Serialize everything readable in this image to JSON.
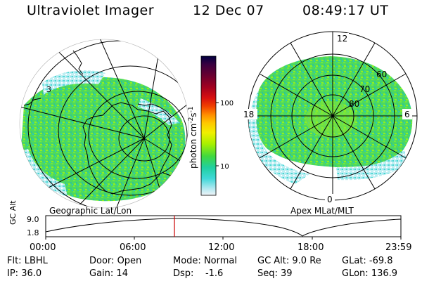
{
  "header": {
    "title": "Ultraviolet Imager",
    "date": "12 Dec 07",
    "time": "08:49:17 UT"
  },
  "geo_map": {
    "label": "Geographic Lat/Lon",
    "overlay_number": "3"
  },
  "apex_map": {
    "label": "Apex MLat/MLT",
    "mlt_labels": {
      "top": "12",
      "left": "18",
      "right": "6",
      "bottom": "0"
    },
    "mlat_labels": [
      "60",
      "70",
      "80"
    ]
  },
  "colorbar": {
    "unit_label": "photon cm",
    "unit_sup1": "-2",
    "unit_mid": "s",
    "unit_sup2": "-1",
    "ticks": [
      "100",
      "10"
    ],
    "colors": [
      "#000040",
      "#3a0040",
      "#6a0030",
      "#a00020",
      "#d00010",
      "#f04000",
      "#ff8000",
      "#ffc000",
      "#f0f000",
      "#b0f000",
      "#60e000",
      "#20d040",
      "#20d0b0",
      "#40d8d8",
      "#a0e8f0",
      "#e0f0f8"
    ]
  },
  "altitude_plot": {
    "ylabel": "GC Alt",
    "yticks": [
      "9.0",
      "1.8"
    ],
    "xticks": [
      "00:00",
      "06:00",
      "12:00",
      "18:00",
      "23:59"
    ],
    "current_time_marker": "08:49:17",
    "marker_color": "#cc0000"
  },
  "info": {
    "row1": [
      {
        "label": "Flt:",
        "value": "LBHL"
      },
      {
        "label": "Door:",
        "value": "Open"
      },
      {
        "label": "Mode:",
        "value": "Normal"
      },
      {
        "label": "GC Alt:",
        "value": "9.0 Re"
      },
      {
        "label": "GLat:",
        "value": "-69.8"
      }
    ],
    "row2": [
      {
        "label": "IP:",
        "value": "36.0"
      },
      {
        "label": "Gain:",
        "value": "14"
      },
      {
        "label": "Dsp:",
        "value": "-1.6"
      },
      {
        "label": "Seq:",
        "value": "39"
      },
      {
        "label": "GLon:",
        "value": "136.9"
      }
    ]
  }
}
